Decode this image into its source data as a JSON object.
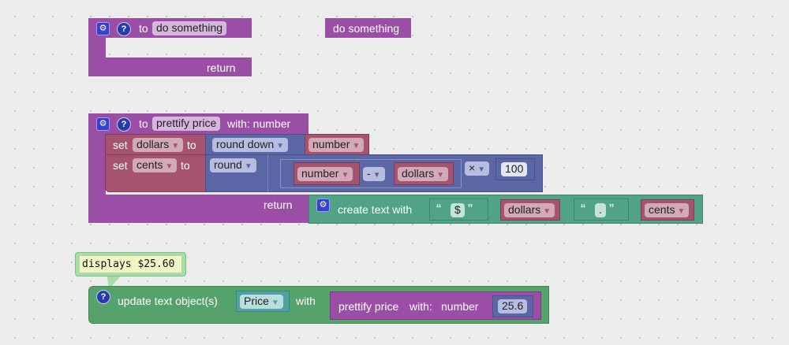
{
  "proc1": {
    "to": "to",
    "name": "do something",
    "return": "return"
  },
  "call1": {
    "label": "do something"
  },
  "proc2": {
    "to": "to",
    "name": "prettify price",
    "with": "with: number",
    "return": "return",
    "set1": {
      "set": "set",
      "var": "dollars",
      "to": "to",
      "op": "round down",
      "arg": "number"
    },
    "set2": {
      "set": "set",
      "var": "cents",
      "to": "to",
      "op": "round",
      "a": "number",
      "minus": "-",
      "b": "dollars",
      "times": "×",
      "num": "100"
    },
    "text": {
      "label": "create text with",
      "t1": "$",
      "v1": "dollars",
      "t2": ".",
      "v2": "cents",
      "open_quote": "“",
      "close_quote": "”"
    }
  },
  "comment": {
    "text": "displays $25.60"
  },
  "update": {
    "label": "update text object(s)",
    "object": "Price",
    "with": "with",
    "call": "prettify price",
    "call_with": "with:",
    "param": "number",
    "value": "25.6"
  },
  "colors": {
    "procedure": "#9a4ea6",
    "variable": "#a5536f",
    "math": "#5b67a5",
    "text": "#50a385",
    "action": "#55a36b",
    "object": "#50a2a2"
  },
  "icons": {
    "gear": "gear-icon",
    "help": "help-icon",
    "dropdown": "dropdown-arrow-icon"
  }
}
